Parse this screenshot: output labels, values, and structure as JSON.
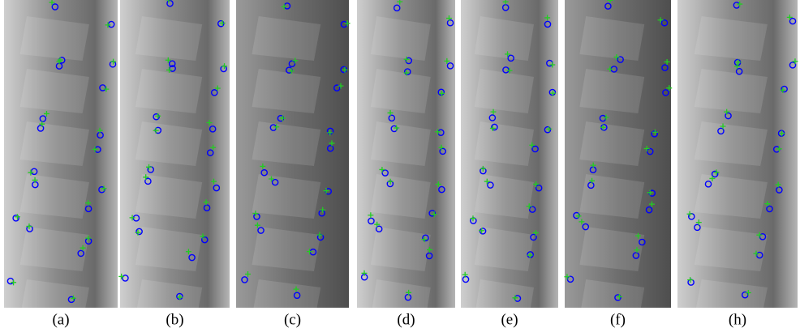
{
  "panels": [
    {
      "label": "(a)"
    },
    {
      "label": "(b)"
    },
    {
      "label": "(c)"
    },
    {
      "label": "(d)"
    },
    {
      "label": "(e)"
    },
    {
      "label": "(f)"
    },
    {
      "label": "(h)"
    }
  ]
}
